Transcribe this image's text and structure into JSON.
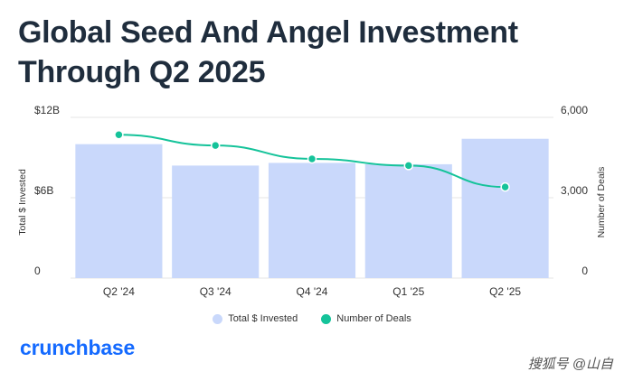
{
  "chart_data": {
    "type": "bar",
    "title_lines": [
      "Global Seed And Angel Investment",
      "Through Q2 2025"
    ],
    "categories": [
      "Q2 '24",
      "Q3 '24",
      "Q4 '24",
      "Q1 '25",
      "Q2 '25"
    ],
    "series": [
      {
        "name": "Total $ Invested",
        "type": "bar",
        "axis": "left",
        "values": [
          10,
          8.4,
          8.6,
          8.5,
          10.4
        ],
        "color": "#c9d8fb"
      },
      {
        "name": "Number of Deals",
        "type": "line",
        "axis": "right",
        "values": [
          5350,
          4950,
          4450,
          4200,
          3400
        ],
        "color": "#15c39a"
      }
    ],
    "ylabel_left": "Total $ Invested",
    "ylabel_right": "Number of Deals",
    "ylim_left": [
      0,
      12
    ],
    "ylim_right": [
      0,
      6000
    ],
    "yticks_left": [
      {
        "value": 0,
        "label": "0"
      },
      {
        "value": 6,
        "label": "$6B"
      },
      {
        "value": 12,
        "label": "$12B"
      }
    ],
    "yticks_right": [
      {
        "value": 0,
        "label": "0"
      },
      {
        "value": 3000,
        "label": "3,000"
      },
      {
        "value": 6000,
        "label": "6,000"
      }
    ],
    "grid": true,
    "legend_position": "bottom-center"
  },
  "legend": {
    "bar_label": "Total $ Invested",
    "line_label": "Number of Deals"
  },
  "brand": "crunchbase",
  "watermark": "搜狐号 @山自",
  "colors": {
    "title": "#1f2d3d",
    "bar": "#c9d8fb",
    "line": "#15c39a",
    "brand": "#146aff"
  }
}
